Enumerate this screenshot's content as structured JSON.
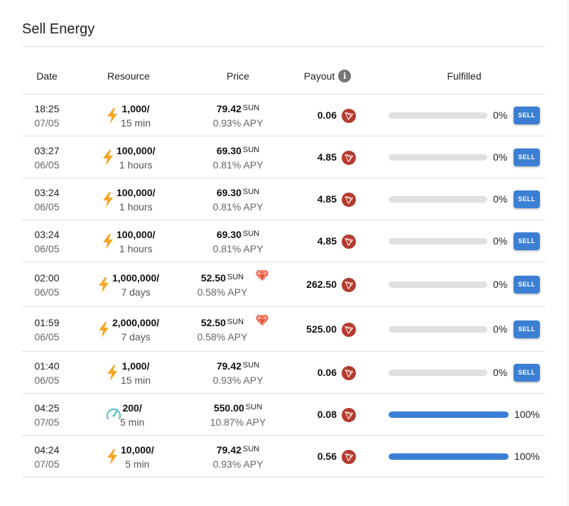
{
  "title": "Sell Energy",
  "columns": {
    "date": "Date",
    "resource": "Resource",
    "price": "Price",
    "payout": "Payout",
    "fulfilled": "Fulfilled"
  },
  "rows": [
    {
      "time": "18:25",
      "date": "07/05",
      "icon": "bolt-icon",
      "amount": "1,000/",
      "duration": "15 min",
      "price": "79.42",
      "unit": "SUN",
      "apy": "0.93% APY",
      "gem": false,
      "payout": "0.06",
      "fulfilled": 0,
      "fulfilled_label": "0%",
      "sell": "SELL"
    },
    {
      "time": "03:27",
      "date": "06/05",
      "icon": "bolt-icon",
      "amount": "100,000/",
      "duration": "1 hours",
      "price": "69.30",
      "unit": "SUN",
      "apy": "0.81% APY",
      "gem": false,
      "payout": "4.85",
      "fulfilled": 0,
      "fulfilled_label": "0%",
      "sell": "SELL"
    },
    {
      "time": "03:24",
      "date": "06/05",
      "icon": "bolt-icon",
      "amount": "100,000/",
      "duration": "1 hours",
      "price": "69.30",
      "unit": "SUN",
      "apy": "0.81% APY",
      "gem": false,
      "payout": "4.85",
      "fulfilled": 0,
      "fulfilled_label": "0%",
      "sell": "SELL"
    },
    {
      "time": "03:24",
      "date": "06/05",
      "icon": "bolt-icon",
      "amount": "100,000/",
      "duration": "1 hours",
      "price": "69.30",
      "unit": "SUN",
      "apy": "0.81% APY",
      "gem": false,
      "payout": "4.85",
      "fulfilled": 0,
      "fulfilled_label": "0%",
      "sell": "SELL"
    },
    {
      "time": "02:00",
      "date": "06/05",
      "icon": "bolt-icon",
      "amount": "1,000,000/",
      "duration": "7 days",
      "price": "52.50",
      "unit": "SUN",
      "apy": "0.58% APY",
      "gem": true,
      "payout": "262.50",
      "fulfilled": 0,
      "fulfilled_label": "0%",
      "sell": "SELL"
    },
    {
      "time": "01:59",
      "date": "06/05",
      "icon": "bolt-icon",
      "amount": "2,000,000/",
      "duration": "7 days",
      "price": "52.50",
      "unit": "SUN",
      "apy": "0.58% APY",
      "gem": true,
      "payout": "525.00",
      "fulfilled": 0,
      "fulfilled_label": "0%",
      "sell": "SELL"
    },
    {
      "time": "01:40",
      "date": "06/05",
      "icon": "bolt-icon",
      "amount": "1,000/",
      "duration": "15 min",
      "price": "79.42",
      "unit": "SUN",
      "apy": "0.93% APY",
      "gem": false,
      "payout": "0.06",
      "fulfilled": 0,
      "fulfilled_label": "0%",
      "sell": "SELL"
    },
    {
      "time": "04:25",
      "date": "07/05",
      "icon": "gauge-icon",
      "amount": "200/",
      "duration": "5 min",
      "price": "550.00",
      "unit": "SUN",
      "apy": "10.87% APY",
      "gem": false,
      "payout": "0.08",
      "fulfilled": 100,
      "fulfilled_label": "100%",
      "sell": ""
    },
    {
      "time": "04:24",
      "date": "07/05",
      "icon": "bolt-icon",
      "amount": "10,000/",
      "duration": "5 min",
      "price": "79.42",
      "unit": "SUN",
      "apy": "0.93% APY",
      "gem": false,
      "payout": "0.56",
      "fulfilled": 100,
      "fulfilled_label": "100%",
      "sell": ""
    }
  ],
  "colors": {
    "accent": "#3b7fd4",
    "bolt": "#f5a623",
    "gauge": "#5fbfc6",
    "tron": "#b33a2f",
    "gem": "#e8543a",
    "track": "#e0e0e0"
  }
}
